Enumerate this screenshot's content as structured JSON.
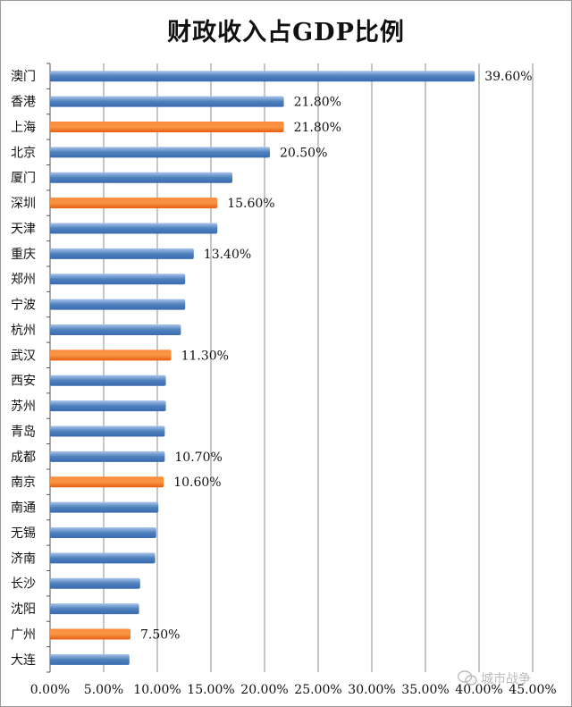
{
  "chart_data": {
    "type": "bar",
    "orientation": "horizontal",
    "title": "财政收入占GDP比例",
    "xlabel": "",
    "ylabel": "",
    "xlim": [
      0,
      45
    ],
    "x_ticks": [
      "0.00%",
      "5.00%",
      "10.00%",
      "15.00%",
      "20.00%",
      "25.00%",
      "30.00%",
      "35.00%",
      "40.00%",
      "45.00%"
    ],
    "grid": "vertical",
    "legend": "none",
    "colors": {
      "default": "#4f81bd",
      "highlight": "#f79646"
    },
    "categories": [
      "澳门",
      "香港",
      "上海",
      "北京",
      "厦门",
      "深圳",
      "天津",
      "重庆",
      "郑州",
      "宁波",
      "杭州",
      "武汉",
      "西安",
      "苏州",
      "青岛",
      "成都",
      "南京",
      "南通",
      "无锡",
      "济南",
      "长沙",
      "沈阳",
      "广州",
      "大连"
    ],
    "values": [
      39.6,
      21.8,
      21.8,
      20.5,
      17.0,
      15.6,
      15.6,
      13.4,
      12.6,
      12.6,
      12.2,
      11.3,
      10.8,
      10.8,
      10.7,
      10.7,
      10.6,
      10.1,
      9.9,
      9.8,
      8.4,
      8.3,
      7.5,
      7.4
    ],
    "highlighted": [
      false,
      false,
      true,
      false,
      false,
      true,
      false,
      false,
      false,
      false,
      false,
      true,
      false,
      false,
      false,
      false,
      true,
      false,
      false,
      false,
      false,
      false,
      true,
      false
    ],
    "data_labels": [
      "39.60%",
      "21.80%",
      "21.80%",
      "20.50%",
      "",
      "15.60%",
      "",
      "13.40%",
      "",
      "",
      "",
      "11.30%",
      "",
      "",
      "",
      "10.70%",
      "10.60%",
      "",
      "",
      "",
      "",
      "",
      "7.50%",
      ""
    ]
  },
  "watermark": {
    "text": "城市战争",
    "icon": "wechat-icon"
  }
}
